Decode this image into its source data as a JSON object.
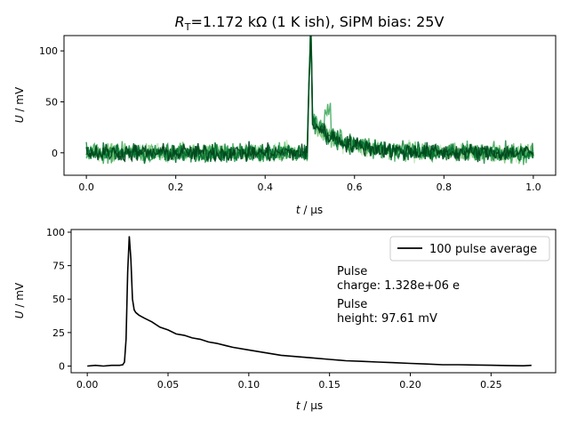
{
  "figure": {
    "title_prefix": "R",
    "title_subscript": "T",
    "title_rest": "=1.172 kΩ (1 K ish), SiPM bias: 25V"
  },
  "chart_data": [
    {
      "type": "line",
      "description": "Overlaid individual SiPM pulse traces (green shades)",
      "xlabel_var": "t",
      "xlabel_unit": " / µs",
      "ylabel_var": "U",
      "ylabel_unit": " / mV",
      "xlim": [
        -0.05,
        1.05
      ],
      "ylim": [
        -22,
        115
      ],
      "xticks": [
        0.0,
        0.2,
        0.4,
        0.6,
        0.8,
        1.0
      ],
      "xtick_labels": [
        "0.0",
        "0.2",
        "0.4",
        "0.6",
        "0.8",
        "1.0"
      ],
      "yticks": [
        0,
        50,
        100
      ],
      "ytick_labels": [
        "0",
        "50",
        "100"
      ],
      "grid": false,
      "colors": [
        "#c7e9c0",
        "#74c476",
        "#41ab5d",
        "#238b45",
        "#006d2c",
        "#00441b"
      ],
      "series_approx": {
        "baseline_mV": 0,
        "noise_amplitude_mV": 8,
        "pulse_start_us": 0.496,
        "pulse_peak_us": 0.502,
        "pulse_peak_mV": 100,
        "tail_start_mV": 35,
        "decay_tau_us": 0.07,
        "tail_end_us": 0.7
      }
    },
    {
      "type": "line",
      "description": "Average pulse",
      "xlabel_var": "t",
      "xlabel_unit": " / µs",
      "ylabel_var": "U",
      "ylabel_unit": " / mV",
      "xlim": [
        -0.01,
        0.29
      ],
      "ylim": [
        -5,
        102
      ],
      "xticks": [
        0.0,
        0.05,
        0.1,
        0.15,
        0.2,
        0.25
      ],
      "xtick_labels": [
        "0.00",
        "0.05",
        "0.10",
        "0.15",
        "0.20",
        "0.25"
      ],
      "yticks": [
        0,
        25,
        50,
        75,
        100
      ],
      "ytick_labels": [
        "0",
        "25",
        "50",
        "75",
        "100"
      ],
      "grid": false,
      "legend": {
        "location": "upper right",
        "label": "100 pulse average",
        "color": "#000000"
      },
      "annotations": [
        {
          "lines": [
            "Pulse",
            "charge: 1.328e+06 e"
          ]
        },
        {
          "lines": [
            "Pulse",
            "height: 97.61 mV"
          ]
        }
      ],
      "series": [
        {
          "name": "100 pulse average",
          "color": "#000000",
          "x": [
            0.0,
            0.005,
            0.01,
            0.015,
            0.02,
            0.022,
            0.023,
            0.024,
            0.025,
            0.026,
            0.027,
            0.028,
            0.029,
            0.03,
            0.032,
            0.035,
            0.04,
            0.045,
            0.05,
            0.055,
            0.06,
            0.065,
            0.07,
            0.075,
            0.08,
            0.09,
            0.1,
            0.11,
            0.12,
            0.13,
            0.14,
            0.15,
            0.16,
            0.17,
            0.18,
            0.19,
            0.2,
            0.21,
            0.22,
            0.23,
            0.24,
            0.25,
            0.26,
            0.27,
            0.275
          ],
          "y": [
            0,
            0.5,
            0,
            0.5,
            0.5,
            1,
            3,
            20,
            70,
            97,
            80,
            50,
            42,
            40,
            38,
            36,
            33,
            29,
            27,
            24,
            23,
            21,
            20,
            18,
            17,
            14,
            12,
            10,
            8,
            7,
            6,
            5,
            4,
            3.5,
            3,
            2.5,
            2,
            1.5,
            1,
            1,
            0.8,
            0.6,
            0.4,
            0.2,
            0.5
          ]
        }
      ]
    }
  ]
}
